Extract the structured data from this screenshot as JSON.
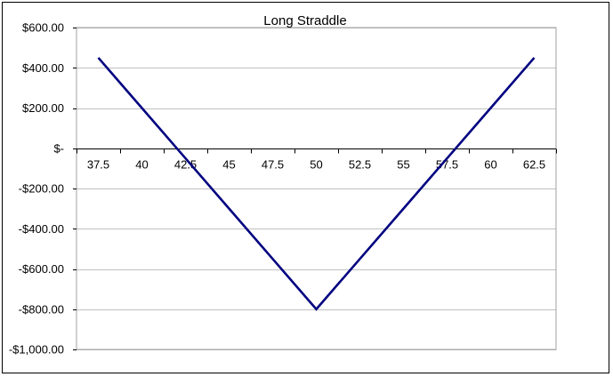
{
  "chart_data": {
    "type": "line",
    "title": "Long Straddle",
    "xlabel": "",
    "ylabel": "",
    "x": [
      37.5,
      40,
      42.5,
      45,
      47.5,
      50,
      52.5,
      55,
      57.5,
      60,
      62.5
    ],
    "x_tick_labels": [
      "37.5",
      "40",
      "42.5",
      "45",
      "47.5",
      "50",
      "52.5",
      "55",
      "57.5",
      "60",
      "62.5"
    ],
    "series": [
      {
        "name": "",
        "color": "#000080",
        "values": [
          450,
          200,
          -50,
          -300,
          -550,
          -800,
          -550,
          -300,
          -50,
          200,
          450
        ]
      }
    ],
    "ylim": [
      -1000,
      600
    ],
    "y_ticks": [
      600,
      400,
      200,
      0,
      -200,
      -400,
      -600,
      -800,
      -1000
    ],
    "y_tick_labels": [
      "$600.00",
      "$400.00",
      "$200.00",
      "$-",
      "-$200.00",
      "-$400.00",
      "-$600.00",
      "-$800.00",
      "-$1,000.00"
    ],
    "grid": "horizontal",
    "legend": "none",
    "gridline_color": "#c0c0c0",
    "axis_color": "#000000"
  }
}
